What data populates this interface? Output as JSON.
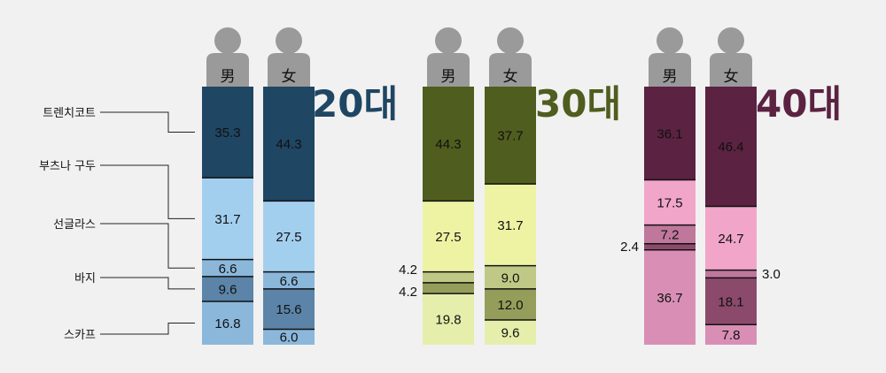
{
  "chart_data": {
    "type": "bar",
    "stacked": true,
    "categories": [
      "트렌치코트",
      "부츠나 구두",
      "선글라스",
      "바지",
      "스카프"
    ],
    "groups": [
      {
        "label": "20대",
        "color": "#1f4663",
        "bars": [
          {
            "gender": "男",
            "values": [
              35.3,
              31.7,
              6.6,
              9.6,
              16.8
            ],
            "colors": [
              "#1f4663",
              "#a3cfef",
              "#8bb7db",
              "#5b84a8",
              "#8bb7db"
            ]
          },
          {
            "gender": "女",
            "values": [
              44.3,
              27.5,
              6.6,
              15.6,
              6.0
            ],
            "colors": [
              "#1f4663",
              "#a3cfef",
              "#8bb7db",
              "#5b84a8",
              "#8bb7db"
            ]
          }
        ]
      },
      {
        "label": "30대",
        "color": "#4f5d1e",
        "bars": [
          {
            "gender": "男",
            "values": [
              44.3,
              27.5,
              4.2,
              4.2,
              19.8
            ],
            "colors": [
              "#4f5d1e",
              "#eef3a4",
              "#bfc985",
              "#949e5a",
              "#e6eeab"
            ]
          },
          {
            "gender": "女",
            "values": [
              37.7,
              31.7,
              9.0,
              12.0,
              9.6
            ],
            "colors": [
              "#4f5d1e",
              "#eef3a4",
              "#bfc985",
              "#949e5a",
              "#e6eeab"
            ]
          }
        ]
      },
      {
        "label": "40대",
        "color": "#5b2241",
        "bars": [
          {
            "gender": "男",
            "values": [
              36.1,
              17.5,
              7.2,
              2.4,
              36.7
            ],
            "colors": [
              "#5b2241",
              "#f1a5c9",
              "#c0779c",
              "#8b4a6b",
              "#d98fb5"
            ]
          },
          {
            "gender": "女",
            "values": [
              46.4,
              24.7,
              3.0,
              18.1,
              7.8
            ],
            "colors": [
              "#5b2241",
              "#f1a5c9",
              "#c0779c",
              "#8b4a6b",
              "#d98fb5"
            ]
          }
        ]
      }
    ],
    "value_labels": [
      [
        "35.3",
        "31.7",
        "6.6",
        "9.6",
        "16.8"
      ],
      [
        "44.3",
        "27.5",
        "6.6",
        "15.6",
        "6.0"
      ],
      [
        "44.3",
        "27.5",
        "4.2",
        "4.2",
        "19.8"
      ],
      [
        "37.7",
        "31.7",
        "9.0",
        "12.0",
        "9.6"
      ],
      [
        "36.1",
        "17.5",
        "7.2",
        "2.4",
        "36.7"
      ],
      [
        "46.4",
        "24.7",
        "3.0",
        "18.1",
        "7.8"
      ]
    ]
  }
}
